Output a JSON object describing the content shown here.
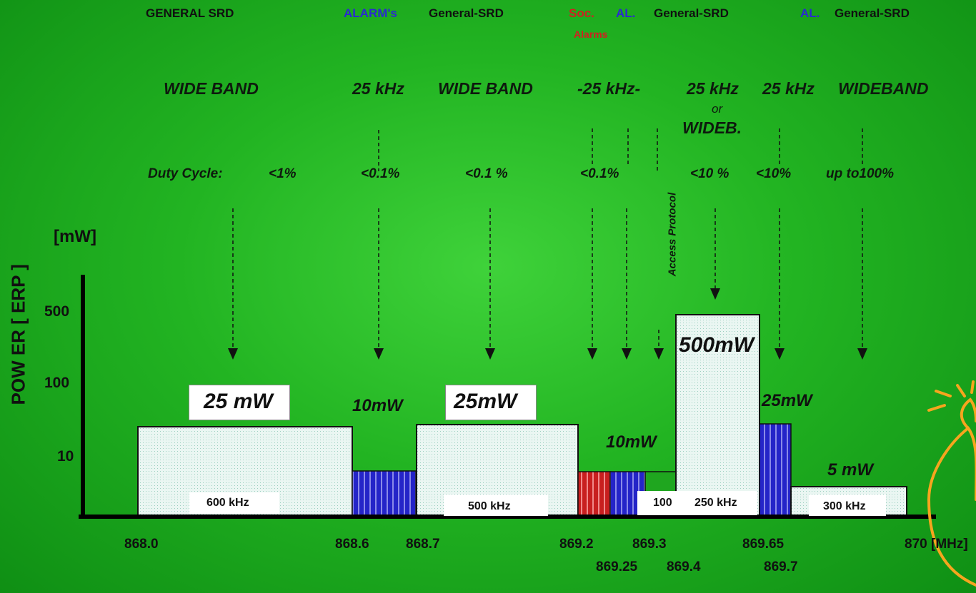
{
  "header": {
    "general_srd": "GENERAL SRD",
    "alarms": "ALARM's",
    "general_srd_2": "General-SRD",
    "soc": "Soc.",
    "alarms_sub": "Alarms",
    "al_1": "AL.",
    "general_srd_3": "General-SRD",
    "al_2": "AL.",
    "general_srd_4": "General-SRD"
  },
  "bandwidths": {
    "b1": "WIDE BAND",
    "b2": "25 kHz",
    "b3": "WIDE BAND",
    "b4": "-25 kHz-",
    "b5": "25 kHz",
    "b5_or": "or",
    "b5_wide": "WIDEB.",
    "b6": "25 kHz",
    "b7": "WIDEBAND"
  },
  "duty_cycle": {
    "label": "Duty Cycle:",
    "d1": "<1%",
    "d2": "<0.1%",
    "d3": "<0.1 %",
    "d4": "<0.1%",
    "d5": "<10 %",
    "d6": "<10%",
    "d7": "up to100%",
    "access_protocol": "Access Protocol"
  },
  "y_axis": {
    "unit": "[mW]",
    "title": "POW ER  [ ERP ]",
    "ticks": [
      "500",
      "100",
      "10"
    ]
  },
  "x_axis": {
    "unit": "[MHz]",
    "ticks": [
      "868.0",
      "868.6",
      "868.7",
      "869.2",
      "869.3",
      "870",
      "869.65"
    ],
    "ticks_low": [
      "869.25",
      "869.4",
      "869.7"
    ]
  },
  "power_labels": {
    "p1": "25 mW",
    "p2": "10mW",
    "p3": "25mW",
    "p4": "10mW",
    "p5": "500mW",
    "p6": "25mW",
    "p7": "5 mW"
  },
  "bw_labels": {
    "w1": "600 kHz",
    "w2": "500 kHz",
    "w3": "100",
    "w4": "250 kHz",
    "w5": "300 kHz"
  },
  "colors": {
    "alarm_blue": "#2a2ad0",
    "social_red": "#d02020",
    "band_fill": "#e6f4f0",
    "axis": "#000000"
  }
}
